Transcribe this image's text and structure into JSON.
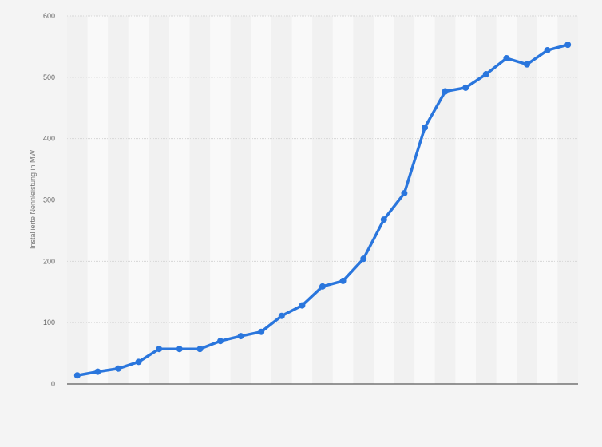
{
  "chart_data": {
    "type": "line",
    "title": "",
    "xlabel": "",
    "ylabel": "Installierte Nennleistung in MW",
    "ylim": [
      0,
      600
    ],
    "yticks": [
      "0",
      "100",
      "200",
      "300",
      "400",
      "500",
      "600"
    ],
    "grid": true,
    "legend": "none",
    "series": [
      {
        "color": "#2a76dd",
        "values": [
          14,
          20,
          25,
          36,
          57,
          57,
          57,
          70,
          78,
          85,
          111,
          128,
          159,
          168,
          204,
          268,
          311,
          418,
          477,
          483,
          505,
          531,
          521,
          544,
          553
        ]
      }
    ]
  }
}
